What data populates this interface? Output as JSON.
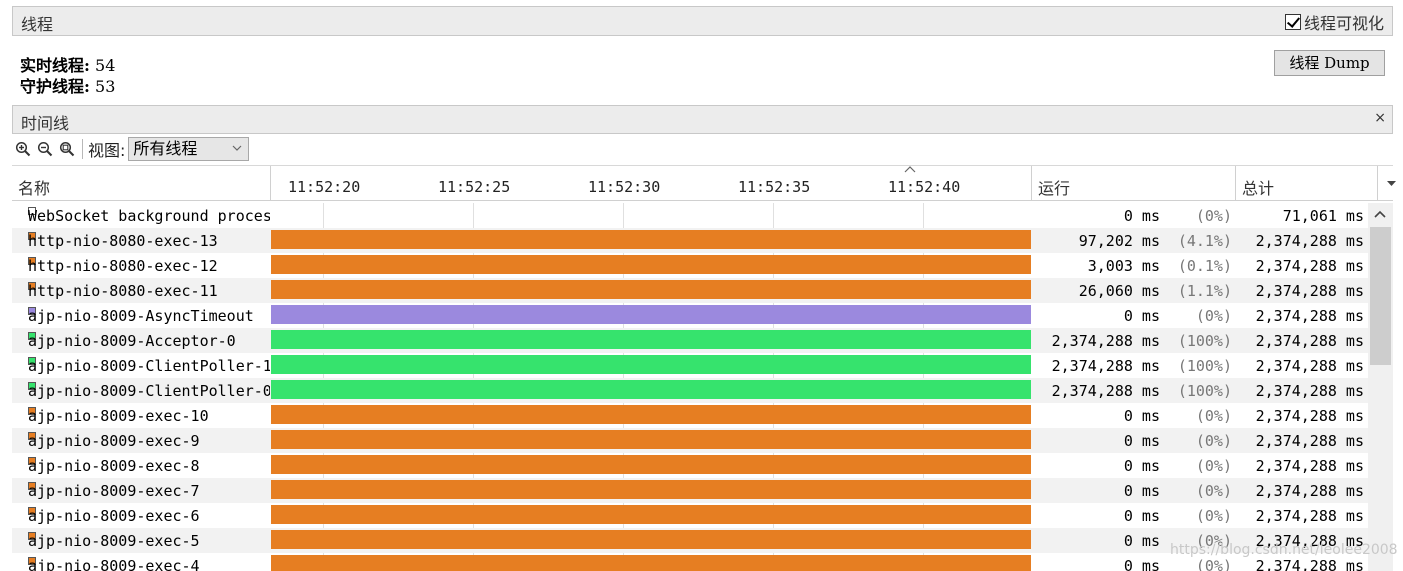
{
  "threads_panel": {
    "title": "线程",
    "visualize_label": "线程可视化",
    "visualize_checked": true,
    "live_label": "实时线程:",
    "live_value": "54",
    "daemon_label": "守护线程:",
    "daemon_value": "53",
    "dump_button": "线程 Dump"
  },
  "timeline_panel": {
    "title": "时间线",
    "close_glyph": "×",
    "view_label": "视图:",
    "view_selected": "所有线程",
    "icons": [
      "zoom-in-icon",
      "zoom-out-icon",
      "zoom-fit-icon"
    ]
  },
  "columns": {
    "name": "名称",
    "running": "运行",
    "total": "总计",
    "ticks": [
      "11:52:20",
      "11:52:25",
      "11:52:30",
      "11:52:35",
      "11:52:40"
    ]
  },
  "colors": {
    "running": "#e67e22",
    "waiting": "#9b89de",
    "green": "#36e36d",
    "white": "#ffffff"
  },
  "threads": [
    {
      "name": "WebSocket background proces",
      "state": "none",
      "running": "0 ms",
      "pct": "(0%)",
      "total": "71,061 ms"
    },
    {
      "name": "http-nio-8080-exec-13",
      "state": "running",
      "running": "97,202 ms",
      "pct": "(4.1%)",
      "total": "2,374,288 ms"
    },
    {
      "name": "http-nio-8080-exec-12",
      "state": "running",
      "running": "3,003 ms",
      "pct": "(0.1%)",
      "total": "2,374,288 ms"
    },
    {
      "name": "http-nio-8080-exec-11",
      "state": "running",
      "running": "26,060 ms",
      "pct": "(1.1%)",
      "total": "2,374,288 ms"
    },
    {
      "name": "ajp-nio-8009-AsyncTimeout",
      "state": "waiting",
      "running": "0 ms",
      "pct": "(0%)",
      "total": "2,374,288 ms"
    },
    {
      "name": "ajp-nio-8009-Acceptor-0",
      "state": "green",
      "running": "2,374,288 ms",
      "pct": "(100%)",
      "total": "2,374,288 ms"
    },
    {
      "name": "ajp-nio-8009-ClientPoller-1",
      "state": "green",
      "running": "2,374,288 ms",
      "pct": "(100%)",
      "total": "2,374,288 ms"
    },
    {
      "name": "ajp-nio-8009-ClientPoller-0",
      "state": "green",
      "running": "2,374,288 ms",
      "pct": "(100%)",
      "total": "2,374,288 ms"
    },
    {
      "name": "ajp-nio-8009-exec-10",
      "state": "running",
      "running": "0 ms",
      "pct": "(0%)",
      "total": "2,374,288 ms"
    },
    {
      "name": "ajp-nio-8009-exec-9",
      "state": "running",
      "running": "0 ms",
      "pct": "(0%)",
      "total": "2,374,288 ms"
    },
    {
      "name": "ajp-nio-8009-exec-8",
      "state": "running",
      "running": "0 ms",
      "pct": "(0%)",
      "total": "2,374,288 ms"
    },
    {
      "name": "ajp-nio-8009-exec-7",
      "state": "running",
      "running": "0 ms",
      "pct": "(0%)",
      "total": "2,374,288 ms"
    },
    {
      "name": "ajp-nio-8009-exec-6",
      "state": "running",
      "running": "0 ms",
      "pct": "(0%)",
      "total": "2,374,288 ms"
    },
    {
      "name": "ajp-nio-8009-exec-5",
      "state": "running",
      "running": "0 ms",
      "pct": "(0%)",
      "total": "2,374,288 ms"
    },
    {
      "name": "ajp-nio-8009-exec-4",
      "state": "running",
      "running": "0 ms",
      "pct": "(0%)",
      "total": "2,374,288 ms"
    }
  ],
  "watermark": "https://blog.csdn.net/leolee2008"
}
